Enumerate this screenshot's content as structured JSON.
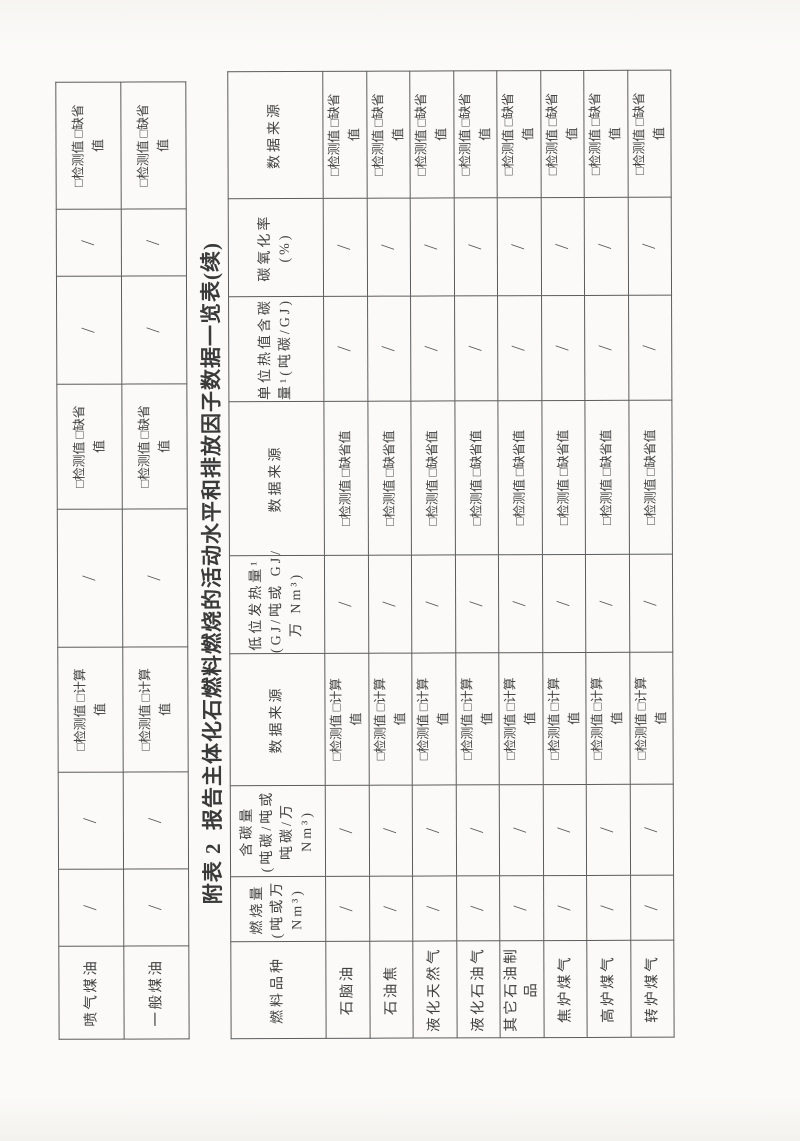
{
  "title": "附表 2  报告主体化石燃料燃烧的活动水平和排放因子数据一览表(续)",
  "checkbox_labels": {
    "detected": "检测值",
    "default": "缺省值",
    "calculated": "计算值"
  },
  "prev_table": {
    "fuels": [
      "喷气煤油",
      "一般煤油"
    ],
    "cell_values": [
      "/",
      "/",
      "□检测值 □计算\n值",
      "/",
      "□检测值 □缺省\n值",
      "/",
      "/",
      "□检测值 □缺省\n值"
    ]
  },
  "main_table": {
    "headers": [
      "燃料品种",
      "燃烧量\n(吨或万\nNm³)",
      "含碳量\n(吨碳/吨或\n吨碳/万\nNm³)",
      "数据来源",
      "低位发热量¹\n(GJ/吨或 GJ/\n万 Nm³)",
      "数据来源",
      "单位热值含碳\n量¹(吨碳/GJ)",
      "碳氧化率\n(%)",
      "数据来源"
    ],
    "fuels": [
      "石脑油",
      "石油焦",
      "液化天然气",
      "液化石油气",
      "其它石油制\n品",
      "焦炉煤气",
      "高炉煤气",
      "转炉煤气"
    ],
    "cell_values": [
      "/",
      "/",
      "□检测值 □计算\n值",
      "/",
      "□检测值 □缺省值",
      "/",
      "/",
      "□检测值 □缺省\n值"
    ]
  }
}
